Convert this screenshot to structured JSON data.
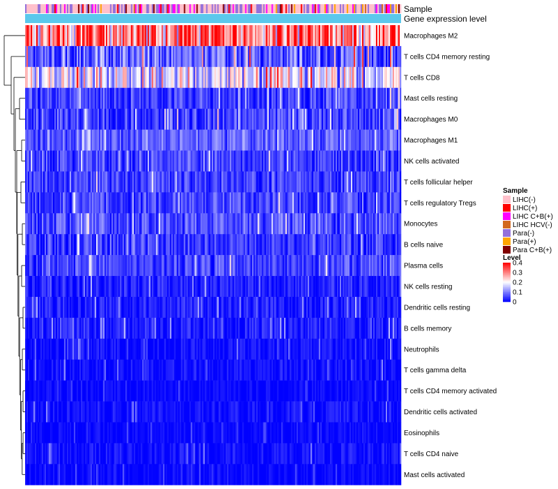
{
  "chart_data": {
    "type": "heatmap",
    "title": "",
    "annotation_tracks": [
      {
        "name": "Sample",
        "kind": "categorical"
      },
      {
        "name": "Gene expression level",
        "kind": "continuous",
        "color": "#5BC8EC"
      }
    ],
    "rows": [
      {
        "label": "Macrophages M2",
        "mean": 0.3,
        "spread": 0.1
      },
      {
        "label": "T cells CD4 memory resting",
        "mean": 0.07,
        "spread": 0.08
      },
      {
        "label": "T cells CD8",
        "mean": 0.17,
        "spread": 0.09
      },
      {
        "label": "Mast cells resting",
        "mean": 0.05,
        "spread": 0.05
      },
      {
        "label": "Macrophages M0",
        "mean": 0.05,
        "spread": 0.06
      },
      {
        "label": "Macrophages M1",
        "mean": 0.07,
        "spread": 0.04
      },
      {
        "label": "NK cells activated",
        "mean": 0.05,
        "spread": 0.05
      },
      {
        "label": "T cells follicular helper",
        "mean": 0.05,
        "spread": 0.05
      },
      {
        "label": "T cells regulatory  Tregs",
        "mean": 0.05,
        "spread": 0.05
      },
      {
        "label": "Monocytes",
        "mean": 0.06,
        "spread": 0.05
      },
      {
        "label": "B cells naive",
        "mean": 0.04,
        "spread": 0.05
      },
      {
        "label": "Plasma cells",
        "mean": 0.05,
        "spread": 0.05
      },
      {
        "label": "NK cells resting",
        "mean": 0.02,
        "spread": 0.04
      },
      {
        "label": "Dendritic cells resting",
        "mean": 0.02,
        "spread": 0.04
      },
      {
        "label": "B cells memory",
        "mean": 0.02,
        "spread": 0.04
      },
      {
        "label": "Neutrophils",
        "mean": 0.01,
        "spread": 0.03
      },
      {
        "label": "T cells gamma delta",
        "mean": 0.01,
        "spread": 0.03
      },
      {
        "label": "T cells CD4 memory activated",
        "mean": 0.005,
        "spread": 0.02
      },
      {
        "label": "Dendritic cells activated",
        "mean": 0.01,
        "spread": 0.03
      },
      {
        "label": "Eosinophils",
        "mean": 0.005,
        "spread": 0.02
      },
      {
        "label": "T cells CD4 naive",
        "mean": 0.01,
        "spread": 0.03
      },
      {
        "label": "Mast cells activated",
        "mean": 0.005,
        "spread": 0.02
      }
    ],
    "n_columns": 270,
    "color_scale": {
      "name": "Level",
      "min": 0,
      "max": 0.4,
      "ticks": [
        0.4,
        0.3,
        0.2,
        0.1,
        0
      ],
      "tick_labels": [
        "0.4",
        "0.3",
        "0.2",
        "0.1",
        "0"
      ],
      "low_color": "#0000FF",
      "mid_color": "#FFFFFF",
      "high_color": "#FF0000"
    },
    "legend": {
      "title": "Sample",
      "position": "right",
      "entries": [
        {
          "label": "LIHC(-)",
          "color": "#FFC0CB",
          "weight": 0.45
        },
        {
          "label": "LIHC(+)",
          "color": "#FF0000",
          "weight": 0.05
        },
        {
          "label": "LIHC C+B(+)",
          "color": "#FF00FF",
          "weight": 0.1
        },
        {
          "label": "LIHC HCV(-)",
          "color": "#D2691E",
          "weight": 0.03
        },
        {
          "label": "Para(-)",
          "color": "#9370DB",
          "weight": 0.3
        },
        {
          "label": "Para(+)",
          "color": "#FFA500",
          "weight": 0.04
        },
        {
          "label": "Para C+B(+)",
          "color": "#800000",
          "weight": 0.03
        }
      ]
    },
    "row_dendrogram": true
  }
}
